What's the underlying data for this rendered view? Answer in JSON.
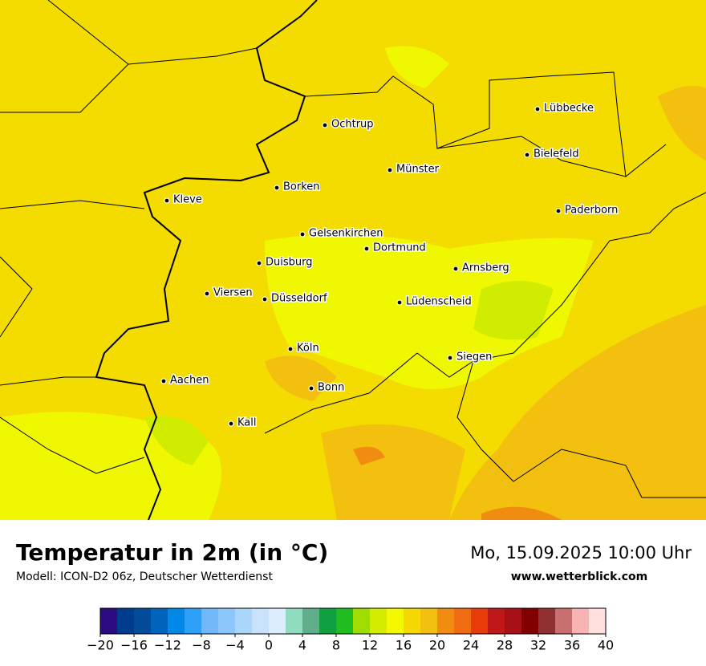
{
  "header": {
    "title": "Temperatur in 2m (in °C)",
    "subtitle": "Modell: ICON-D2 06z, Deutscher Wetterdienst",
    "date": "Mo, 15.09.2025 10:00 Uhr",
    "website": "www.wetterblick.com"
  },
  "cities": [
    "Lübbecke",
    "Ochtrup",
    "Bielefeld",
    "Münster",
    "Borken",
    "Kleve",
    "Paderborn",
    "Gelsenkirchen",
    "Dortmund",
    "Duisburg",
    "Arnsberg",
    "Viersen",
    "Düsseldorf",
    "Lüdenscheid",
    "Köln",
    "Siegen",
    "Aachen",
    "Bonn",
    "Kall"
  ],
  "colorbar": {
    "range": [
      -20,
      40
    ],
    "colors": [
      "#2c0a80",
      "#003c8c",
      "#004c98",
      "#0064bc",
      "#0088e8",
      "#2ea0f8",
      "#70b8f8",
      "#8cc6fa",
      "#aad6fc",
      "#c8e2fc",
      "#dceefe",
      "#90dcc0",
      "#60ae8c",
      "#10a040",
      "#20bc20",
      "#a0dc00",
      "#d4ec00",
      "#f4f800",
      "#f4d800",
      "#f4c010",
      "#f08c10",
      "#f06c10",
      "#e83a0a",
      "#c01818",
      "#a81018",
      "#800000",
      "#903030",
      "#c87070",
      "#f8b4b4",
      "#ffdede"
    ],
    "ticks": [
      {
        "value": -20,
        "label": "−20"
      },
      {
        "value": -16,
        "label": "−16"
      },
      {
        "value": -12,
        "label": "−12"
      },
      {
        "value": -8,
        "label": "−8"
      },
      {
        "value": -4,
        "label": "−4"
      },
      0,
      4,
      8,
      12,
      16,
      20,
      24,
      28,
      32,
      36,
      40
    ]
  }
}
